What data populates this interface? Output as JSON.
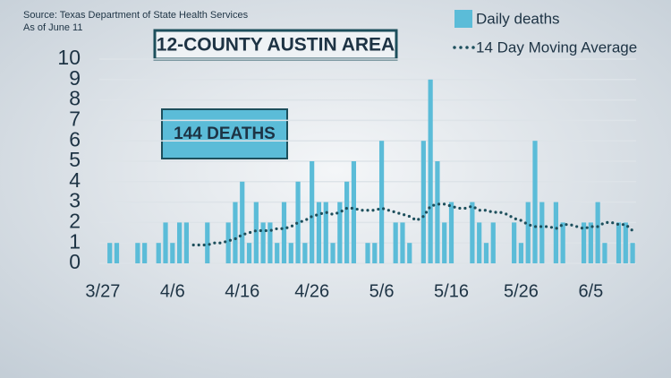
{
  "chart_data": {
    "type": "bar",
    "title": "12-COUNTY AUSTIN AREA",
    "source": "Source: Texas Department of State Health Services",
    "as_of": "As of June 11",
    "annotation": "144 DEATHS",
    "categories": [
      "3/27",
      null,
      null,
      null,
      null,
      null,
      null,
      null,
      null,
      null,
      "4/6",
      null,
      null,
      null,
      null,
      null,
      null,
      null,
      null,
      null,
      "4/16",
      null,
      null,
      null,
      null,
      null,
      null,
      null,
      null,
      null,
      "4/26",
      null,
      null,
      null,
      null,
      null,
      null,
      null,
      null,
      null,
      "5/6",
      null,
      null,
      null,
      null,
      null,
      null,
      null,
      null,
      null,
      "5/16",
      null,
      null,
      null,
      null,
      null,
      null,
      null,
      null,
      null,
      "5/26",
      null,
      null,
      null,
      null,
      null,
      null,
      null,
      null,
      null,
      "6/5",
      null,
      null,
      null,
      null,
      null,
      null
    ],
    "series": [
      {
        "name": "Daily deaths",
        "color": "#5bbcd8",
        "values": [
          0,
          1,
          1,
          0,
          0,
          1,
          1,
          0,
          1,
          2,
          1,
          2,
          2,
          0,
          0,
          2,
          0,
          0,
          2,
          3,
          4,
          1,
          3,
          2,
          2,
          1,
          3,
          1,
          4,
          1,
          5,
          3,
          3,
          1,
          3,
          4,
          5,
          0,
          1,
          1,
          6,
          0,
          2,
          2,
          1,
          0,
          6,
          9,
          5,
          2,
          3,
          0,
          0,
          3,
          2,
          1,
          2,
          0,
          0,
          2,
          1,
          3,
          6,
          3,
          0,
          3,
          2,
          0,
          0,
          2,
          2,
          3,
          1,
          0,
          2,
          2,
          1
        ]
      },
      {
        "name": "14 Day Moving Average",
        "type": "line",
        "color": "#1d4f5c",
        "values": [
          null,
          null,
          null,
          null,
          null,
          null,
          null,
          null,
          null,
          null,
          null,
          null,
          null,
          0.9,
          0.9,
          0.9,
          1.0,
          1.0,
          1.1,
          1.2,
          1.4,
          1.5,
          1.6,
          1.6,
          1.6,
          1.7,
          1.7,
          1.8,
          2.0,
          2.1,
          2.3,
          2.4,
          2.5,
          2.4,
          2.5,
          2.7,
          2.7,
          2.6,
          2.6,
          2.6,
          2.7,
          2.6,
          2.5,
          2.4,
          2.3,
          2.1,
          2.3,
          2.8,
          2.9,
          2.9,
          2.8,
          2.7,
          2.7,
          2.8,
          2.6,
          2.6,
          2.5,
          2.5,
          2.4,
          2.2,
          2.1,
          1.9,
          1.8,
          1.8,
          1.8,
          1.7,
          1.9,
          1.9,
          1.8,
          1.7,
          1.8,
          1.8,
          2.0,
          2.0,
          1.9,
          1.9,
          1.6
        ]
      }
    ],
    "ylim": [
      0,
      10
    ],
    "yticks": [
      0,
      1,
      2,
      3,
      4,
      5,
      6,
      7,
      8,
      9,
      10
    ],
    "grid": true
  }
}
